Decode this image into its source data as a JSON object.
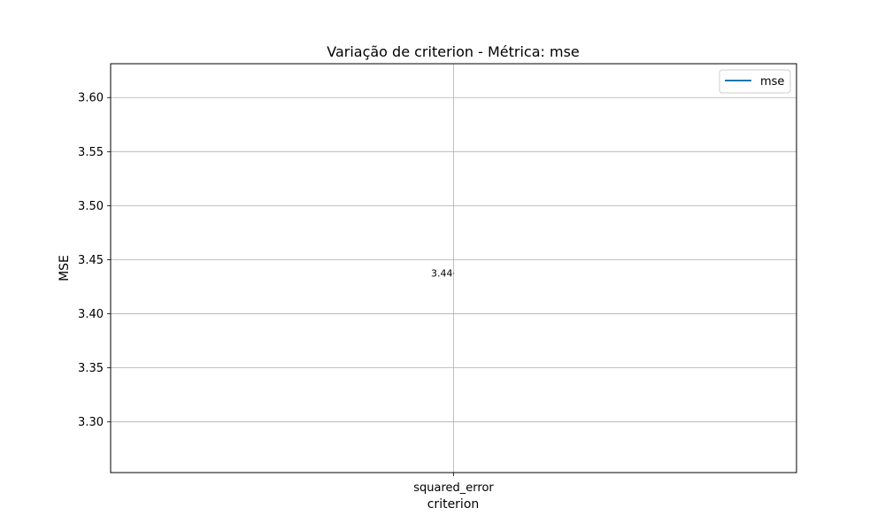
{
  "chart_data": {
    "type": "line",
    "title": "Variação de criterion - Métrica: mse",
    "xlabel": "criterion",
    "ylabel": "MSE",
    "categories": [
      "squared_error"
    ],
    "series": [
      {
        "name": "mse",
        "values": [
          3.4375
        ],
        "color": "#1f77b4"
      }
    ],
    "data_labels": [
      "3.44"
    ],
    "ylim": [
      3.2531,
      3.6313
    ],
    "yticks": [
      3.3,
      3.35,
      3.4,
      3.45,
      3.5,
      3.55,
      3.6
    ],
    "ytick_labels": [
      "3.30",
      "3.35",
      "3.40",
      "3.45",
      "3.50",
      "3.55",
      "3.60"
    ],
    "grid": true,
    "legend_position": "top-right"
  }
}
